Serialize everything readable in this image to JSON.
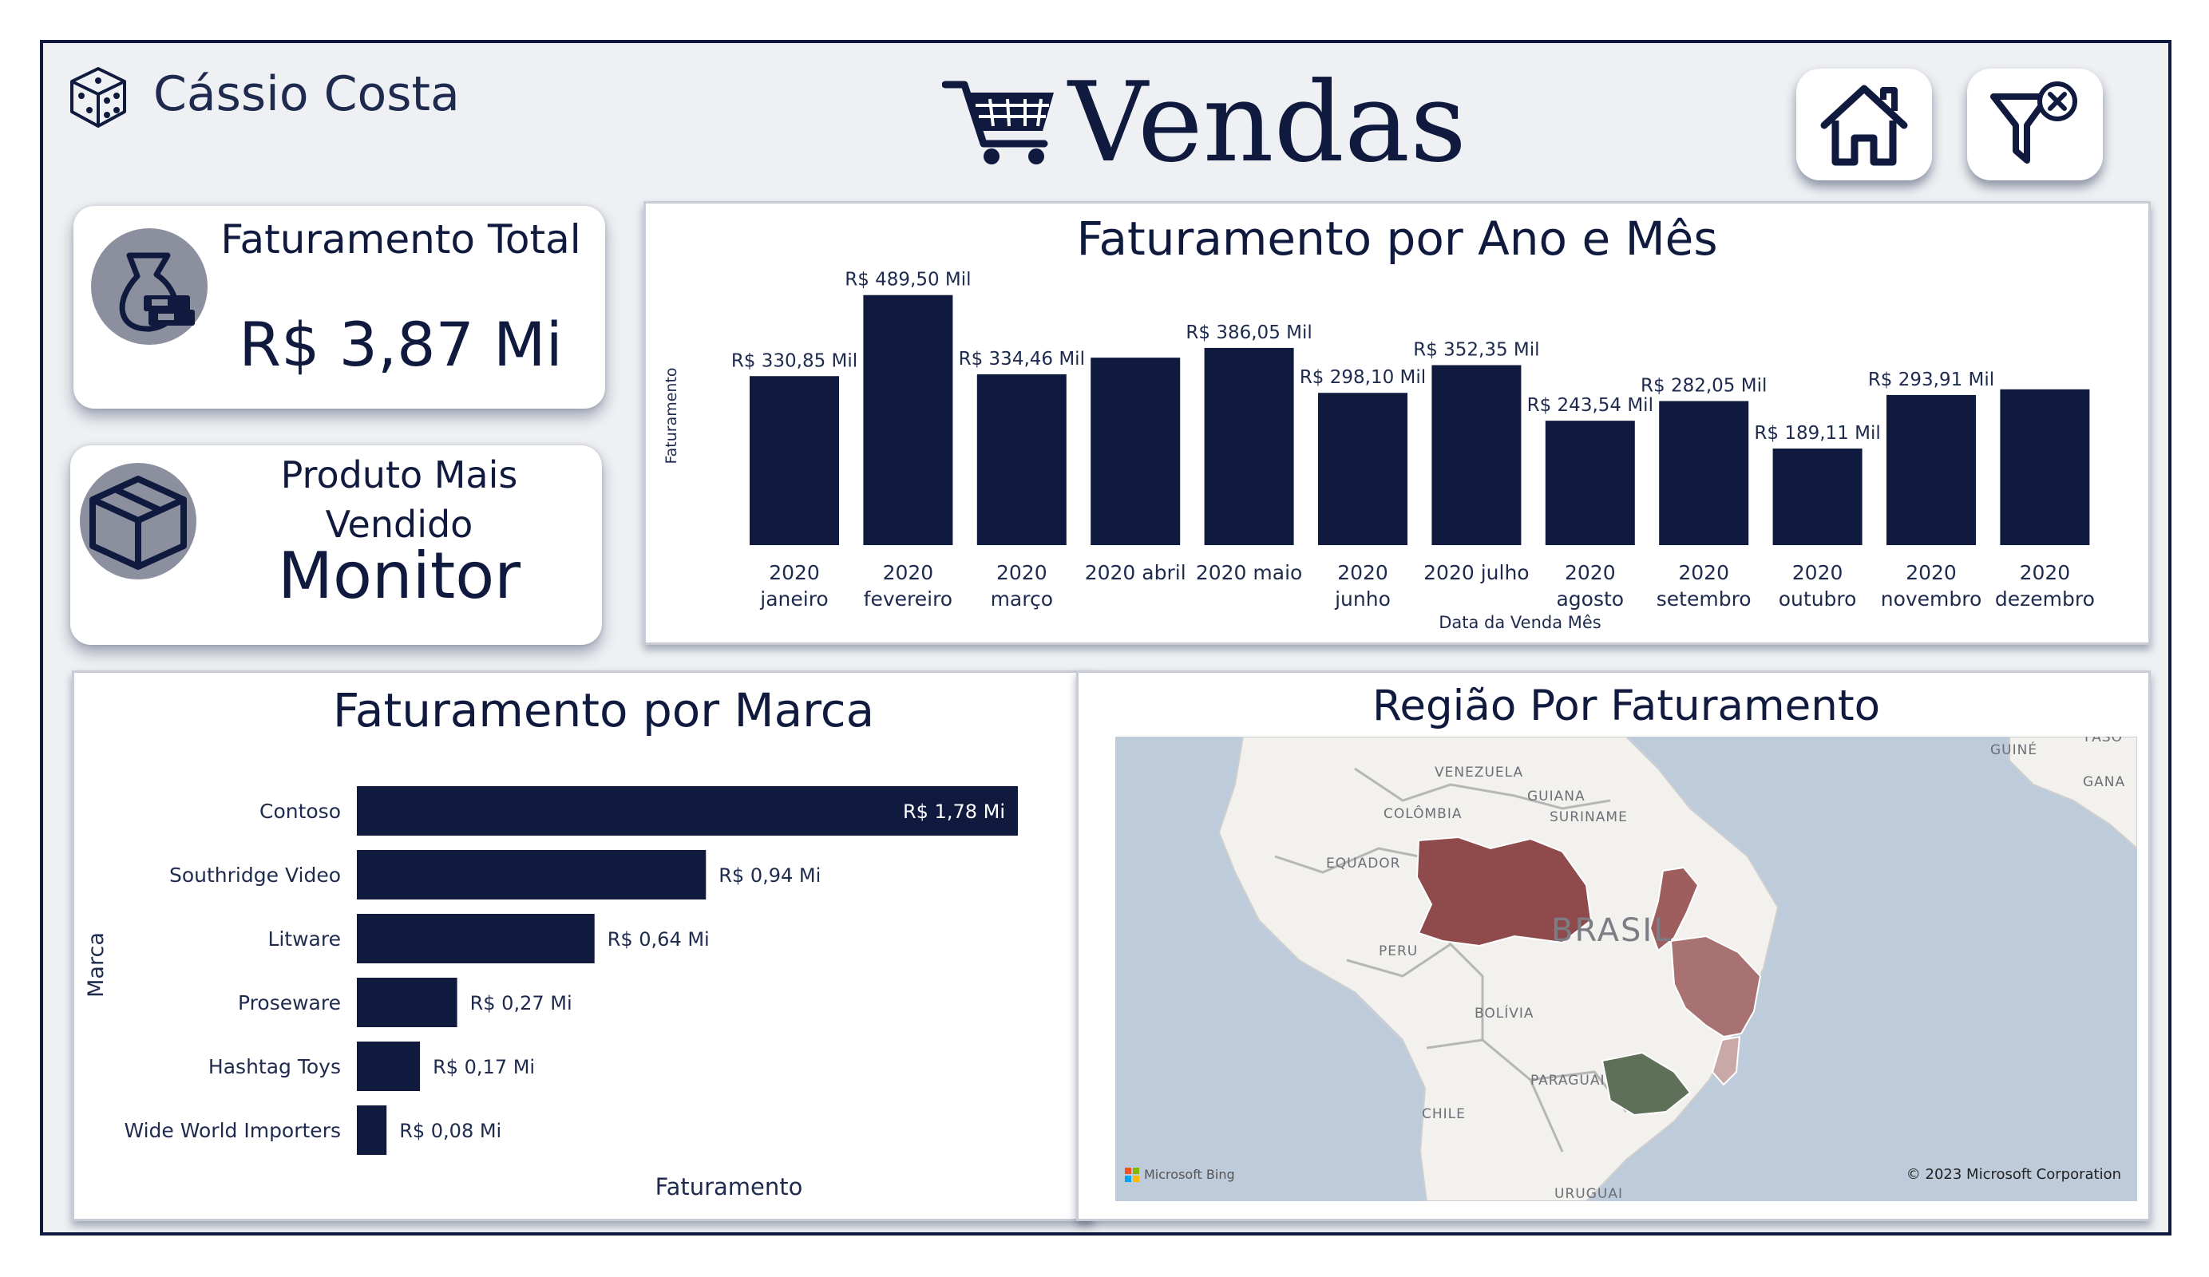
{
  "header": {
    "user_name": "Cássio Costa",
    "page_title": "Vendas",
    "buttons": [
      {
        "name": "home",
        "icon": "home-icon"
      },
      {
        "name": "clear-filters",
        "icon": "filter-clear-icon"
      }
    ]
  },
  "kpis": {
    "total_revenue": {
      "label": "Faturamento Total",
      "value": "R$ 3,87 Mi",
      "icon": "money-bag-icon"
    },
    "top_product": {
      "label": "Produto Mais Vendido",
      "value": "Monitor",
      "icon": "box-icon"
    }
  },
  "colors": {
    "navy": "#0f1a3e",
    "background": "#eef0f3",
    "map_water": "#bdcbdb",
    "map_land": "#f2f1ee",
    "region_red": "#8f4a4c",
    "region_green": "#5f7058"
  },
  "chart_data": [
    {
      "type": "bar",
      "title": "Faturamento por Ano e Mês",
      "xlabel": "Data da Venda Mês",
      "ylabel": "Faturamento",
      "categories": [
        "2020 janeiro",
        "2020 fevereiro",
        "2020 março",
        "2020 abril",
        "2020 maio",
        "2020 junho",
        "2020 julho",
        "2020 agosto",
        "2020 setembro",
        "2020 outubro",
        "2020 novembro",
        "2020 dezembro"
      ],
      "values": [
        330.85,
        489.5,
        334.46,
        367.0,
        386.05,
        298.1,
        352.35,
        243.54,
        282.05,
        189.11,
        293.91,
        305.0
      ],
      "data_labels": [
        "R$ 330,85 Mil",
        "R$ 489,50 Mil",
        "R$ 334,46 Mil",
        "",
        "R$ 386,05 Mil",
        "R$ 298,10 Mil",
        "R$ 352,35 Mil",
        "R$ 243,54 Mil",
        "R$ 282,05 Mil",
        "R$ 189,11 Mil",
        "R$ 293,91 Mil",
        ""
      ],
      "ylim": [
        0,
        500
      ],
      "grid": false
    },
    {
      "type": "bar",
      "orientation": "horizontal",
      "title": "Faturamento por Marca",
      "xlabel": "Faturamento",
      "ylabel": "Marca",
      "categories": [
        "Contoso",
        "Southridge Video",
        "Litware",
        "Proseware",
        "Hashtag Toys",
        "Wide World Importers"
      ],
      "values": [
        1.78,
        0.94,
        0.64,
        0.27,
        0.17,
        0.08
      ],
      "data_labels": [
        "R$ 1,78 Mi",
        "R$ 0,94 Mi",
        "R$ 0,64 Mi",
        "R$ 0,27 Mi",
        "R$ 0,17 Mi",
        "R$ 0,08 Mi"
      ],
      "xlim": [
        0,
        1.78
      ],
      "grid": false
    }
  ],
  "map": {
    "title": "Região Por Faturamento",
    "labels": [
      "VENEZUELA",
      "GUIANA",
      "SURINAME",
      "COLÔMBIA",
      "EQUADOR",
      "PERU",
      "BRASIL",
      "BOLÍVIA",
      "PARAGUAI",
      "CHILE",
      "URUGUAI",
      "GUINÉ",
      "GANA",
      "FASO"
    ],
    "attribution": "Microsoft Bing",
    "copyright": "© 2023 Microsoft Corporation"
  }
}
